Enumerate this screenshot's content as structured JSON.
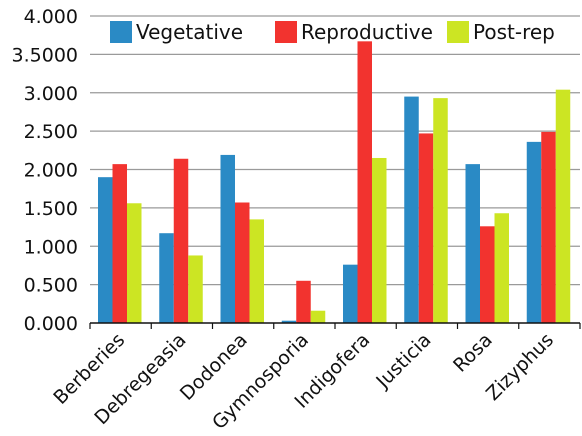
{
  "chart_data": {
    "type": "bar",
    "categories": [
      "Berberies",
      "Debregeasia",
      "Dodonea",
      "Gymnosporia",
      "Indigofera",
      "Justicia",
      "Rosa",
      "Zizyphus"
    ],
    "series": [
      {
        "name": "Vegetative",
        "color": "#2a8ac5",
        "values": [
          1.9,
          1.17,
          2.19,
          0.03,
          0.76,
          2.95,
          2.07,
          2.36
        ]
      },
      {
        "name": "Reproductive",
        "color": "#f2332f",
        "values": [
          2.07,
          2.14,
          1.57,
          0.55,
          3.67,
          2.47,
          1.26,
          2.49
        ]
      },
      {
        "name": "Post-rep",
        "color": "#cce523",
        "values": [
          1.56,
          0.88,
          1.35,
          0.16,
          2.15,
          2.93,
          1.43,
          3.04
        ]
      }
    ],
    "ylim": [
      0,
      4
    ],
    "yticks": [
      "0.000",
      "0.500",
      "1.000",
      "1.500",
      "2.000",
      "2.500",
      "3.000",
      "3.5000",
      "4.000"
    ],
    "grid": true,
    "legend_position": "top"
  }
}
